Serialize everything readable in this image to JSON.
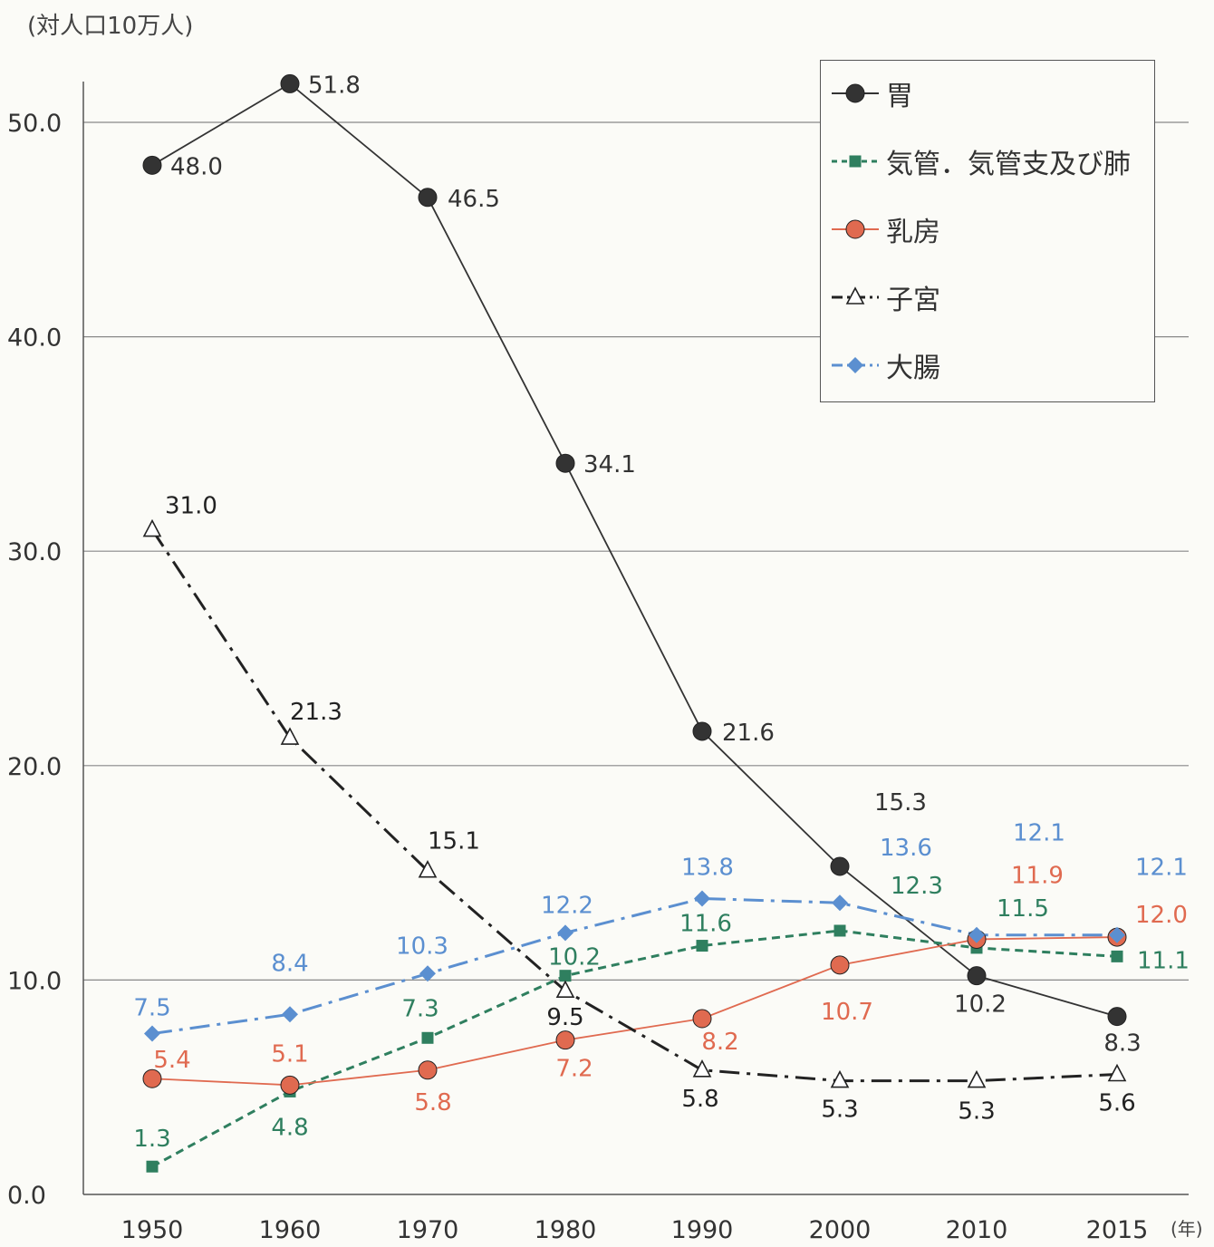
{
  "chart_data": {
    "type": "line",
    "ylabel": "(対人口10万人)",
    "xunit": "(年)",
    "ylim": [
      0,
      52
    ],
    "yticks": [
      "0.0",
      "10.0",
      "20.0",
      "30.0",
      "40.0",
      "50.0"
    ],
    "categories": [
      "1950",
      "1960",
      "1970",
      "1980",
      "1990",
      "2000",
      "2010",
      "2015"
    ],
    "series": [
      {
        "name": "胃",
        "color": "#333333",
        "marker": "circle",
        "line": "solid",
        "values": [
          48.0,
          51.8,
          46.5,
          34.1,
          21.6,
          15.3,
          10.2,
          8.3
        ],
        "labels": [
          "48.0",
          "51.8",
          "46.5",
          "34.1",
          "21.6",
          "15.3",
          "10.2",
          "8.3"
        ]
      },
      {
        "name": "気管．気管支及び肺",
        "color": "#2f7f5f",
        "marker": "square",
        "line": "dashed",
        "values": [
          1.3,
          4.8,
          7.3,
          10.2,
          11.6,
          12.3,
          11.5,
          11.1
        ],
        "labels": [
          "1.3",
          "4.8",
          "7.3",
          "10.2",
          "11.6",
          "12.3",
          "11.5",
          "11.1"
        ]
      },
      {
        "name": "乳房",
        "color": "#e06a50",
        "marker": "circle",
        "line": "solid",
        "values": [
          5.4,
          5.1,
          5.8,
          7.2,
          8.2,
          10.7,
          11.9,
          12.0
        ],
        "labels": [
          "5.4",
          "5.1",
          "5.8",
          "7.2",
          "8.2",
          "10.7",
          "11.9",
          "12.0"
        ]
      },
      {
        "name": "子宮",
        "color": "#222222",
        "marker": "triangle",
        "line": "dashdot",
        "values": [
          31.0,
          21.3,
          15.1,
          9.5,
          5.8,
          5.3,
          5.3,
          5.6
        ],
        "labels": [
          "31.0",
          "21.3",
          "15.1",
          "9.5",
          "5.8",
          "5.3",
          "5.3",
          "5.6"
        ]
      },
      {
        "name": "大腸",
        "color": "#5b8fd0",
        "marker": "diamond",
        "line": "dashdot",
        "values": [
          7.5,
          8.4,
          10.3,
          12.2,
          13.8,
          13.6,
          12.1,
          12.1
        ],
        "labels": [
          "7.5",
          "8.4",
          "10.3",
          "12.2",
          "13.8",
          "13.6",
          "12.1",
          "12.1"
        ]
      }
    ],
    "legend_position": "top-right",
    "grid": "horizontal"
  }
}
